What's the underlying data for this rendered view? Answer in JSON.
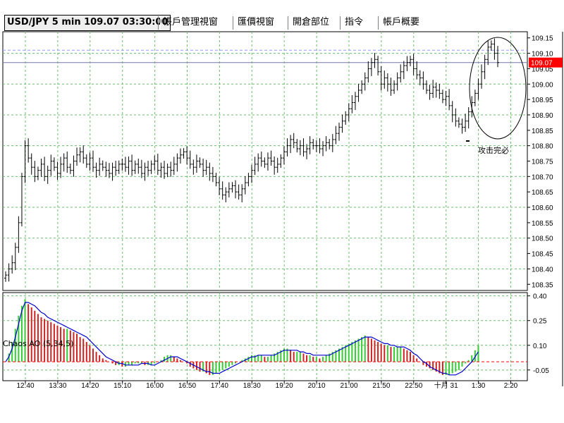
{
  "tabs": [
    {
      "label": "USD/JPY 5 min 109.07 03:30:00",
      "active": true
    },
    {
      "label": "帳戶管理視窗",
      "active": false
    },
    {
      "label": "匯價視窗",
      "active": false
    },
    {
      "label": "開倉部位",
      "active": false
    },
    {
      "label": "指令",
      "active": false
    },
    {
      "label": "帳戶概要",
      "active": false
    }
  ],
  "colors": {
    "grid": "#6bbf6b",
    "up_bar": "#33cc33",
    "down_bar": "#cc2222",
    "ao_line": "#0000cc",
    "price_badge": "#ff0000",
    "reference_line": "#9999ff",
    "zero_line": "#ff0000"
  },
  "chart_data": [
    {
      "type": "bar",
      "subtype": "ohlc",
      "title": "USD/JPY 5 min 109.07 03:30:00",
      "current_price_label": "109.07",
      "ylim": [
        108.33,
        109.17
      ],
      "y_ticks": [
        "109.15",
        "109.10",
        "109.05",
        "109.00",
        "108.95",
        "108.90",
        "108.85",
        "108.80",
        "108.75",
        "108.70",
        "108.65",
        "108.60",
        "108.55",
        "108.50",
        "108.45",
        "108.40",
        "108.35"
      ],
      "x_ticks": [
        "12:40",
        "13:30",
        "14:20",
        "15:10",
        "16:00",
        "16:50",
        "17:40",
        "18:30",
        "19:20",
        "20:10",
        "21:00",
        "21:50",
        "22:50",
        "十月 31",
        "1:30",
        "2:20"
      ],
      "grid": true,
      "annotations": [
        {
          "text": "攻击完必",
          "note": "ellipse around last bars"
        }
      ],
      "series": [
        {
          "values": [
            108.38,
            108.4,
            108.42,
            108.47,
            108.55,
            108.7,
            108.8,
            108.76,
            108.73,
            108.7,
            108.72,
            108.74,
            108.7,
            108.72,
            108.75,
            108.73,
            108.71,
            108.74,
            108.76,
            108.73,
            108.72,
            108.75,
            108.77,
            108.78,
            108.76,
            108.74,
            108.76,
            108.73,
            108.72,
            108.74,
            108.73,
            108.72,
            108.71,
            108.73,
            108.72,
            108.74,
            108.74,
            108.73,
            108.75,
            108.72,
            108.74,
            108.73,
            108.71,
            108.73,
            108.72,
            108.74,
            108.75,
            108.72,
            108.73,
            108.71,
            108.73,
            108.72,
            108.74,
            108.76,
            108.77,
            108.78,
            108.76,
            108.74,
            108.73,
            108.75,
            108.74,
            108.72,
            108.73,
            108.71,
            108.7,
            108.68,
            108.66,
            108.64,
            108.65,
            108.66,
            108.67,
            108.65,
            108.64,
            108.66,
            108.68,
            108.7,
            108.72,
            108.74,
            108.76,
            108.75,
            108.74,
            108.76,
            108.75,
            108.73,
            108.74,
            108.76,
            108.78,
            108.8,
            108.82,
            108.81,
            108.79,
            108.8,
            108.78,
            108.79,
            108.81,
            108.8,
            108.8,
            108.79,
            108.8,
            108.81,
            108.8,
            108.82,
            108.84,
            108.86,
            108.88,
            108.9,
            108.92,
            108.94,
            108.96,
            108.98,
            109.0,
            109.02,
            109.05,
            109.07,
            109.08,
            109.04,
            109.0,
            109.02,
            109.0,
            108.98,
            109.0,
            109.02,
            109.04,
            109.06,
            109.07,
            109.08,
            109.05,
            109.03,
            109.02,
            109.0,
            108.98,
            108.97,
            108.99,
            108.98,
            108.97,
            108.95,
            108.96,
            108.93,
            108.9,
            108.88,
            108.87,
            108.86,
            108.88,
            108.91,
            108.94,
            108.97,
            109.0,
            109.04,
            109.08,
            109.12,
            109.13,
            109.1,
            109.07
          ]
        }
      ]
    },
    {
      "type": "bar",
      "subtype": "oscillator",
      "indicator_label": "Chaos AO (5,34,5)",
      "ylim": [
        -0.115,
        0.42
      ],
      "y_ticks": [
        "0.40",
        "0.25",
        "0.10",
        "-0.05"
      ],
      "zero_line": 0,
      "series": [
        {
          "name": "AO",
          "values": [
            0.0,
            0.05,
            0.12,
            0.2,
            0.28,
            0.34,
            0.38,
            0.35,
            0.33,
            0.31,
            0.29,
            0.27,
            0.26,
            0.25,
            0.24,
            0.23,
            0.22,
            0.21,
            0.2,
            0.2,
            0.19,
            0.18,
            0.17,
            0.15,
            0.14,
            0.12,
            0.1,
            0.08,
            0.06,
            0.04,
            0.02,
            0.01,
            0.0,
            -0.01,
            -0.02,
            -0.02,
            -0.03,
            -0.03,
            -0.02,
            -0.02,
            -0.01,
            -0.01,
            -0.01,
            -0.02,
            -0.02,
            -0.02,
            -0.01,
            0.0,
            0.01,
            0.03,
            0.04,
            0.04,
            0.03,
            0.02,
            0.01,
            0.0,
            -0.01,
            -0.03,
            -0.04,
            -0.05,
            -0.06,
            -0.06,
            -0.07,
            -0.08,
            -0.08,
            -0.07,
            -0.06,
            -0.05,
            -0.04,
            -0.03,
            -0.02,
            -0.01,
            0.0,
            0.01,
            0.02,
            0.03,
            0.04,
            0.04,
            0.04,
            0.04,
            0.03,
            0.03,
            0.04,
            0.05,
            0.06,
            0.07,
            0.08,
            0.08,
            0.07,
            0.06,
            0.06,
            0.06,
            0.05,
            0.04,
            0.04,
            0.03,
            0.03,
            0.02,
            0.03,
            0.04,
            0.05,
            0.06,
            0.07,
            0.08,
            0.09,
            0.1,
            0.11,
            0.12,
            0.13,
            0.14,
            0.15,
            0.16,
            0.15,
            0.14,
            0.13,
            0.12,
            0.11,
            0.1,
            0.1,
            0.09,
            0.09,
            0.09,
            0.09,
            0.08,
            0.07,
            0.06,
            0.04,
            0.02,
            0.0,
            -0.02,
            -0.03,
            -0.04,
            -0.05,
            -0.06,
            -0.07,
            -0.08,
            -0.08,
            -0.08,
            -0.07,
            -0.06,
            -0.05,
            -0.03,
            -0.01,
            0.01,
            0.04,
            0.07,
            0.1
          ]
        },
        {
          "name": "signal",
          "values": [
            0.0,
            0.03,
            0.08,
            0.15,
            0.23,
            0.31,
            0.36,
            0.36,
            0.35,
            0.34,
            0.32,
            0.3,
            0.29,
            0.27,
            0.26,
            0.25,
            0.24,
            0.23,
            0.22,
            0.21,
            0.2,
            0.19,
            0.18,
            0.17,
            0.16,
            0.15,
            0.13,
            0.11,
            0.09,
            0.07,
            0.05,
            0.03,
            0.02,
            0.01,
            0.0,
            -0.01,
            -0.01,
            -0.02,
            -0.02,
            -0.02,
            -0.02,
            -0.02,
            -0.01,
            -0.01,
            -0.01,
            -0.02,
            -0.02,
            -0.01,
            0.0,
            0.01,
            0.02,
            0.03,
            0.03,
            0.03,
            0.02,
            0.01,
            0.0,
            -0.01,
            -0.02,
            -0.03,
            -0.04,
            -0.05,
            -0.06,
            -0.06,
            -0.07,
            -0.07,
            -0.07,
            -0.06,
            -0.05,
            -0.04,
            -0.03,
            -0.02,
            -0.01,
            0.0,
            0.01,
            0.02,
            0.03,
            0.03,
            0.04,
            0.04,
            0.04,
            0.04,
            0.04,
            0.04,
            0.05,
            0.06,
            0.07,
            0.07,
            0.07,
            0.07,
            0.07,
            0.06,
            0.06,
            0.05,
            0.05,
            0.04,
            0.04,
            0.04,
            0.04,
            0.04,
            0.04,
            0.05,
            0.06,
            0.07,
            0.08,
            0.09,
            0.1,
            0.11,
            0.12,
            0.13,
            0.14,
            0.15,
            0.15,
            0.15,
            0.14,
            0.13,
            0.12,
            0.11,
            0.11,
            0.1,
            0.1,
            0.09,
            0.09,
            0.09,
            0.08,
            0.07,
            0.05,
            0.04,
            0.02,
            0.0,
            -0.01,
            -0.03,
            -0.04,
            -0.05,
            -0.06,
            -0.07,
            -0.07,
            -0.08,
            -0.08,
            -0.08,
            -0.07,
            -0.06,
            -0.04,
            -0.02,
            0.0,
            0.03,
            0.06
          ]
        }
      ]
    }
  ]
}
